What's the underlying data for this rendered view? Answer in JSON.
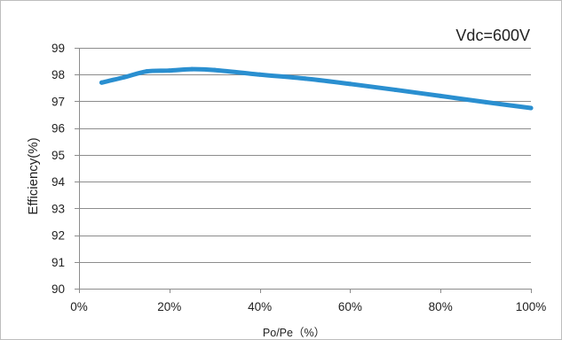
{
  "chart_data": {
    "type": "line",
    "annotation": "Vdc=600V",
    "xlabel": "Po/Pe（%）",
    "ylabel": "Efficiency(%)",
    "xlim": [
      0,
      100
    ],
    "ylim": [
      90,
      99
    ],
    "x_ticks": [
      0,
      20,
      40,
      60,
      80,
      100
    ],
    "x_tick_labels": [
      "0%",
      "20%",
      "40%",
      "60%",
      "80%",
      "100%"
    ],
    "y_ticks": [
      90,
      91,
      92,
      93,
      94,
      95,
      96,
      97,
      98,
      99
    ],
    "y_tick_labels": [
      "90",
      "91",
      "92",
      "93",
      "94",
      "95",
      "96",
      "97",
      "98",
      "99"
    ],
    "grid": "horizontal",
    "series": [
      {
        "color": "#2a8fd0",
        "x": [
          5,
          10,
          15,
          20,
          25,
          30,
          40,
          50,
          60,
          70,
          80,
          90,
          100
        ],
        "y": [
          97.7,
          97.9,
          98.12,
          98.15,
          98.2,
          98.17,
          98.0,
          97.85,
          97.65,
          97.43,
          97.2,
          96.97,
          96.75
        ]
      }
    ]
  }
}
